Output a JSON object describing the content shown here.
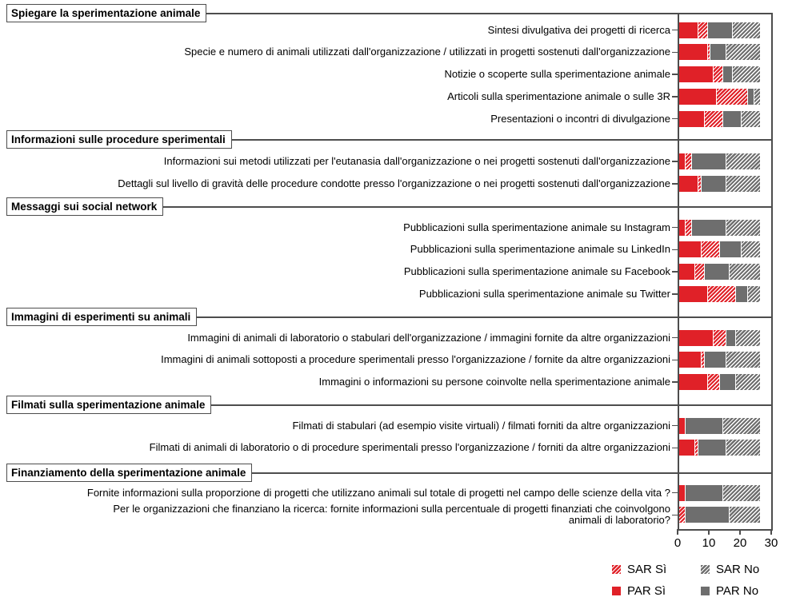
{
  "chart_data": {
    "type": "bar",
    "orientation": "horizontal",
    "stacked": true,
    "title": "",
    "xlabel": "",
    "ylabel": "",
    "x_axis": {
      "min": 0,
      "max": 30,
      "ticks": [
        "0",
        "10",
        "20",
        "30"
      ]
    },
    "grid": false,
    "legend_position": "bottom-right",
    "series_order": [
      "SAR Sì",
      "PAR Sì",
      "PAR No",
      "SAR No"
    ],
    "legend": [
      {
        "label": "SAR Sì",
        "style": "hatched",
        "color": "#e02128"
      },
      {
        "label": "SAR No",
        "style": "hatched",
        "color": "#6e6e6e"
      },
      {
        "label": "PAR Sì",
        "style": "solid",
        "color": "#e02128"
      },
      {
        "label": "PAR No",
        "style": "solid",
        "color": "#6e6e6e"
      }
    ],
    "value_note": "values arrays are ordered [PAR Sì, SAR Sì, PAR No, SAR No] as stacked left to right",
    "groups": [
      {
        "title": "Spiegare la sperimentazione animale",
        "rows": [
          {
            "label": "Sintesi divulgativa dei progetti di ricerca",
            "values": [
              6,
              3,
              8,
              9
            ]
          },
          {
            "label": "Specie e numero di animali utilizzati dall'organizzazione / utilizzati in progetti sostenuti dall'organizzazione",
            "values": [
              9,
              1,
              5,
              11
            ]
          },
          {
            "label": "Notizie o scoperte sulla sperimentazione animale",
            "values": [
              11,
              3,
              3,
              9
            ]
          },
          {
            "label": "Articoli sulla sperimentazione animale o sulle 3R",
            "values": [
              12,
              10,
              2,
              2
            ]
          },
          {
            "label": "Presentazioni o incontri di divulgazione",
            "values": [
              8,
              6,
              6,
              6
            ]
          }
        ]
      },
      {
        "title": "Informazioni sulle procedure sperimentali",
        "rows": [
          {
            "label": "Informazioni sui metodi utilizzati per l'eutanasia dall'organizzazione o nei progetti sostenuti dall'organizzazione",
            "values": [
              2,
              2,
              11,
              11
            ]
          },
          {
            "label": "Dettagli sul livello di gravità delle procedure condotte presso l'organizzazione o nei progetti sostenuti dall'organizzazione",
            "values": [
              6,
              1,
              8,
              11
            ]
          }
        ]
      },
      {
        "title": "Messaggi sui social network",
        "rows": [
          {
            "label": "Pubblicazioni sulla sperimentazione animale su Instagram",
            "values": [
              2,
              2,
              11,
              11
            ]
          },
          {
            "label": "Pubblicazioni sulla sperimentazione animale su LinkedIn",
            "values": [
              7,
              6,
              7,
              6
            ]
          },
          {
            "label": "Pubblicazioni sulla sperimentazione animale su Facebook",
            "values": [
              5,
              3,
              8,
              10
            ]
          },
          {
            "label": "Pubblicazioni sulla sperimentazione animale su Twitter",
            "values": [
              9,
              9,
              4,
              4
            ]
          }
        ]
      },
      {
        "title": "Immagini di esperimenti su animali",
        "rows": [
          {
            "label": "Immagini di animali di laboratorio o stabulari dell'organizzazione / immagini fornite da altre organizzazioni",
            "values": [
              11,
              4,
              3,
              8
            ]
          },
          {
            "label": "Immagini di animali sottoposti a procedure sperimentali presso l'organizzazione / fornite da altre organizzazioni",
            "values": [
              7,
              1,
              7,
              11
            ]
          },
          {
            "label": "Immagini o informazioni su persone coinvolte nella sperimentazione animale",
            "values": [
              9,
              4,
              5,
              8
            ]
          }
        ]
      },
      {
        "title": "Filmati sulla sperimentazione animale",
        "rows": [
          {
            "label": "Filmati di stabulari (ad esempio visite virtuali) / filmati forniti da altre organizzazioni",
            "values": [
              2,
              0,
              12,
              12
            ]
          },
          {
            "label": "Filmati di animali di laboratorio o di procedure sperimentali presso l'organizzazione / forniti da altre organizzazioni",
            "values": [
              5,
              1,
              9,
              11
            ]
          }
        ]
      },
      {
        "title": "Finanziamento della sperimentazione animale",
        "rows": [
          {
            "label": "Fornite informazioni sulla proporzione di progetti che utilizzano animali sul totale di progetti nel campo delle scienze della vita ?",
            "values": [
              2,
              0,
              12,
              12
            ]
          },
          {
            "label": "Per le organizzazioni che finanziano la ricerca: fornite informazioni sulla percentuale di progetti finanziati che coinvolgono animali di laboratorio?",
            "label_lines": [
              "Per le organizzazioni che finanziano la ricerca: fornite informazioni sulla percentuale di progetti finanziati che coinvolgono",
              "animali di laboratorio?"
            ],
            "values": [
              0,
              2,
              14,
              10
            ]
          }
        ]
      }
    ],
    "colors": {
      "sar_si": "#e02128",
      "par_si": "#e02128",
      "sar_no": "#6e6e6e",
      "par_no": "#6e6e6e",
      "axis": "#4d4d4d",
      "background": "#ffffff"
    }
  }
}
